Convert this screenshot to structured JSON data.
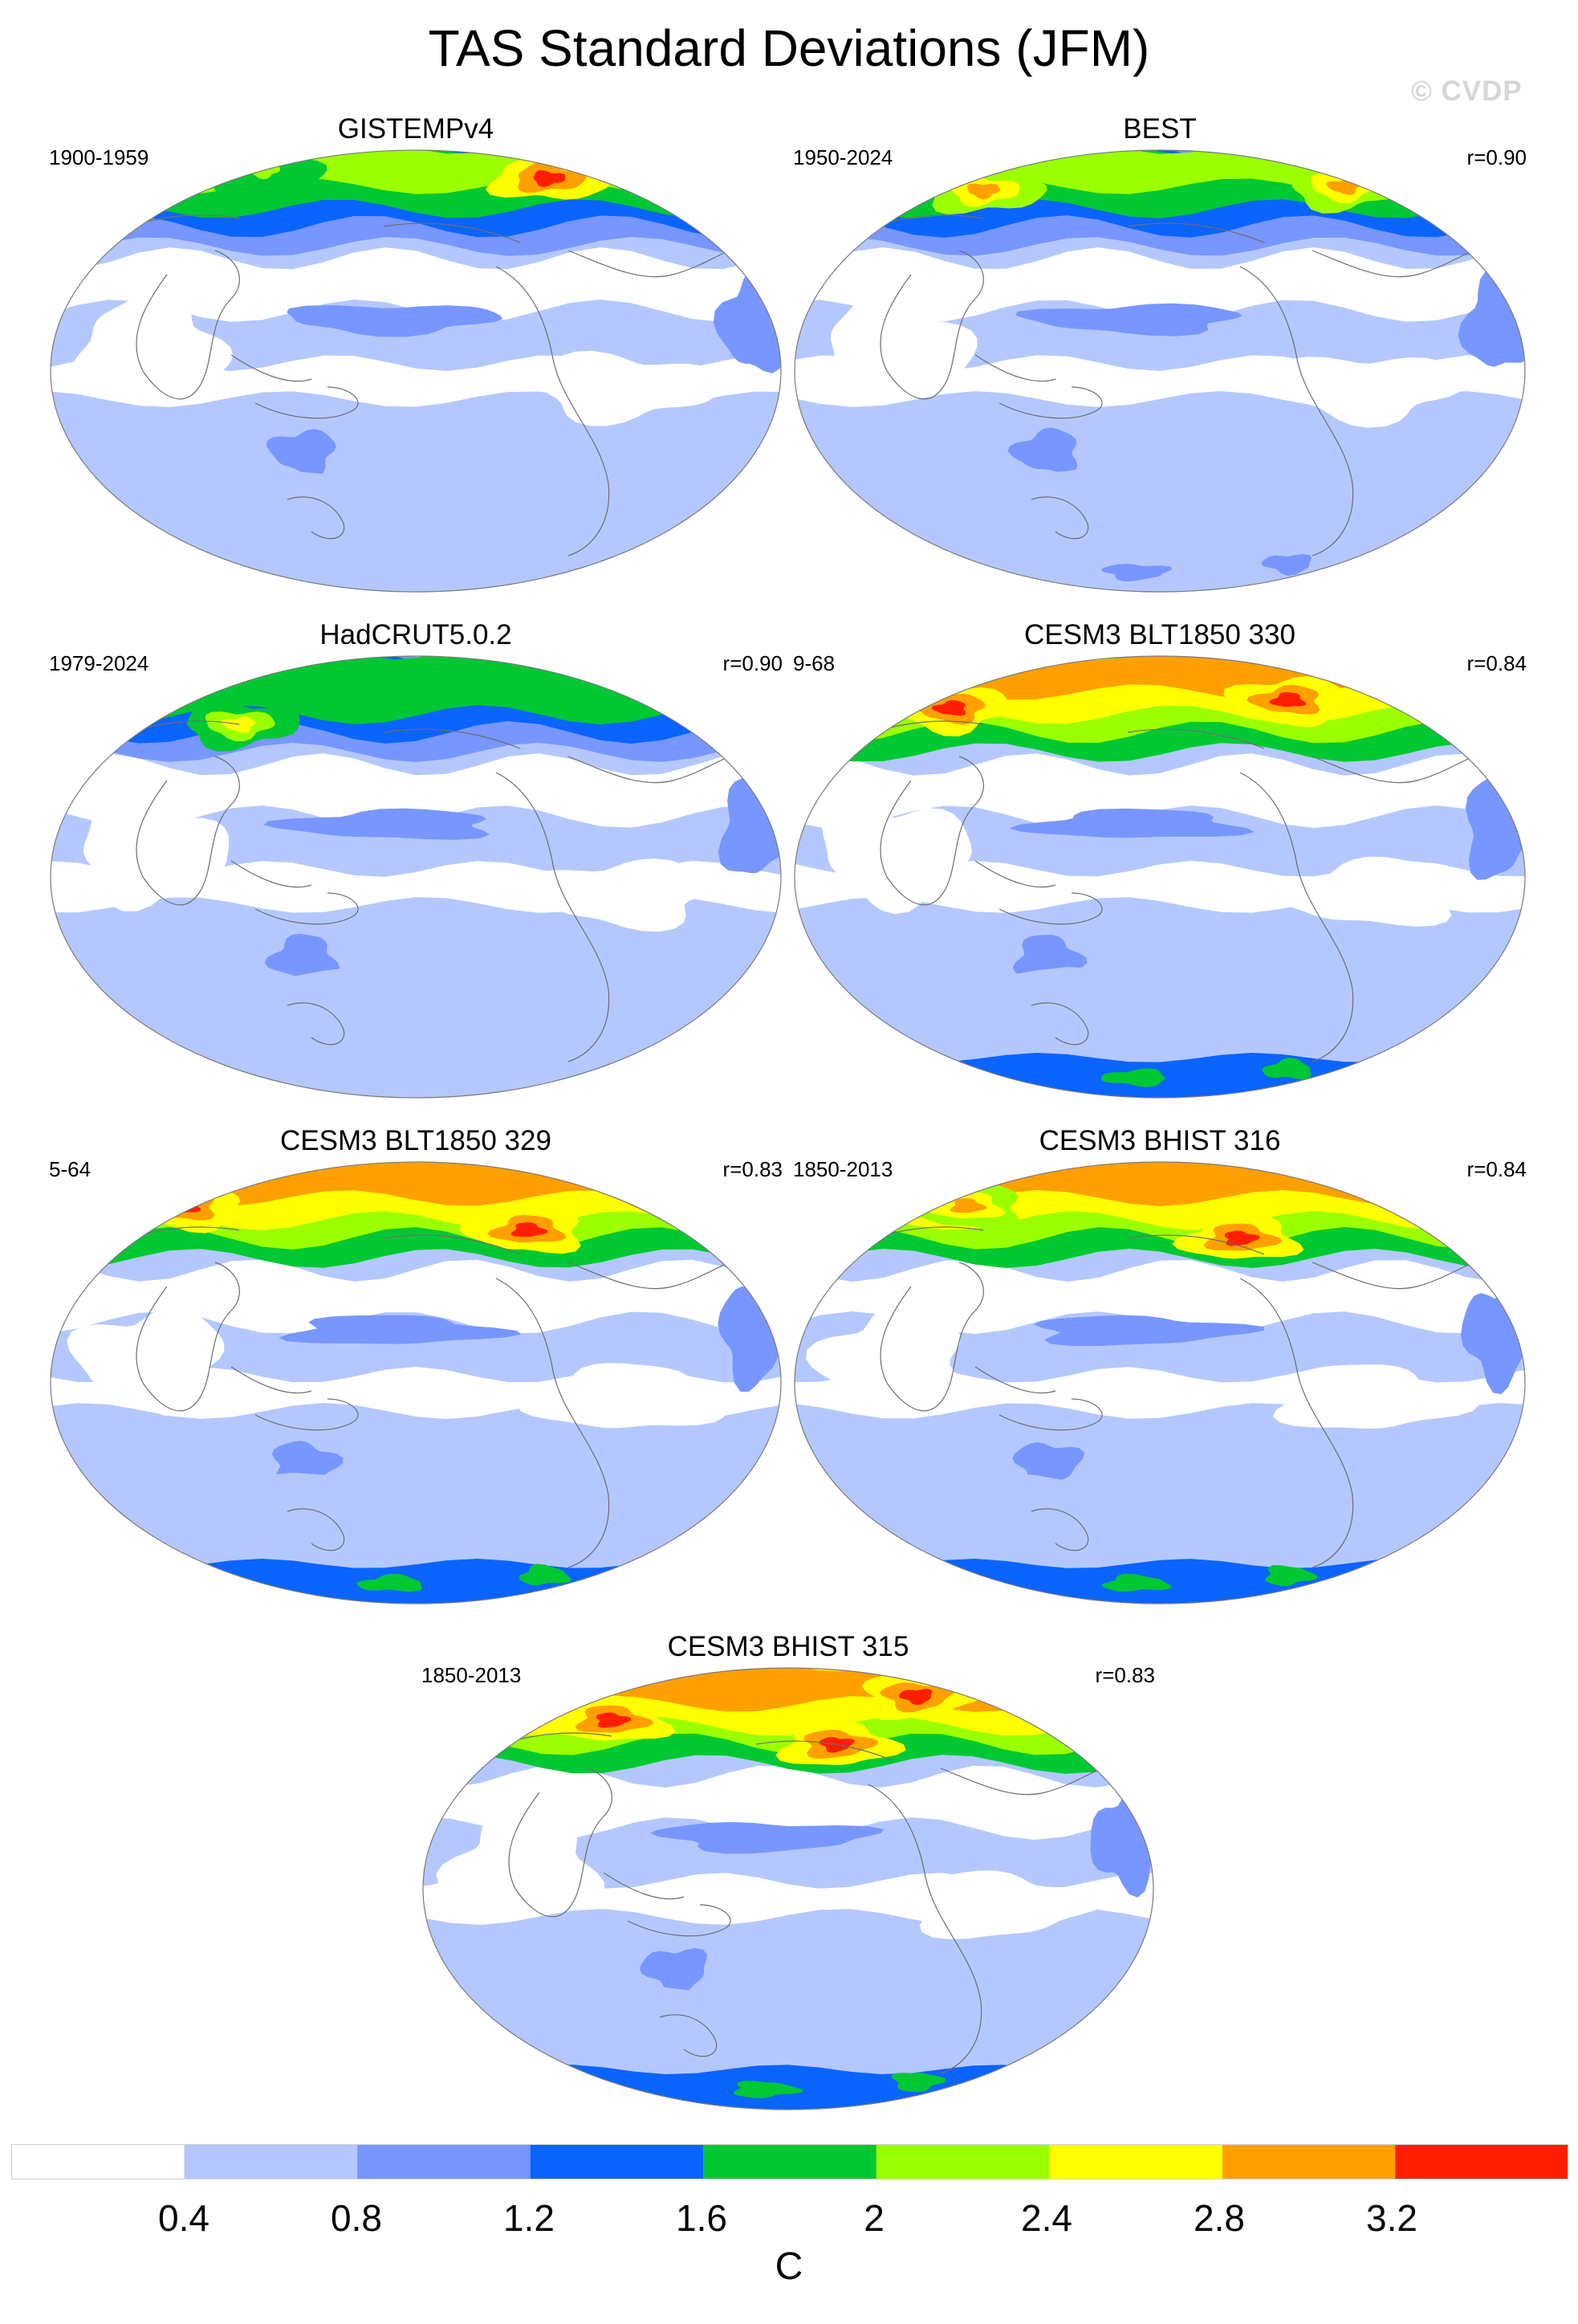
{
  "title": "TAS Standard Deviations (JFM)",
  "watermark": "© CVDP",
  "panels": [
    {
      "name": "GISTEMPv4",
      "period": "1900-1959",
      "corr": ""
    },
    {
      "name": "BEST",
      "period": "1950-2024",
      "corr": "r=0.90"
    },
    {
      "name": "HadCRUT5.0.2",
      "period": "1979-2024",
      "corr": "r=0.90"
    },
    {
      "name": "CESM3 BLT1850 330",
      "period": "9-68",
      "corr": "r=0.84"
    },
    {
      "name": "CESM3 BLT1850 329",
      "period": "5-64",
      "corr": "r=0.83"
    },
    {
      "name": "CESM3 BHIST 316",
      "period": "1850-2013",
      "corr": "r=0.84"
    },
    {
      "name": "CESM3 BHIST 315",
      "period": "1850-2013",
      "corr": "r=0.83"
    }
  ],
  "colorbar": {
    "labels": [
      "0.4",
      "0.8",
      "1.2",
      "1.6",
      "2",
      "2.4",
      "2.8",
      "3.2"
    ],
    "colors": [
      "#ffffff",
      "#b4c8ff",
      "#7896ff",
      "#0a64ff",
      "#00c832",
      "#9bff00",
      "#ffff00",
      "#ffa000",
      "#ff1e00"
    ],
    "unit": "C"
  }
}
